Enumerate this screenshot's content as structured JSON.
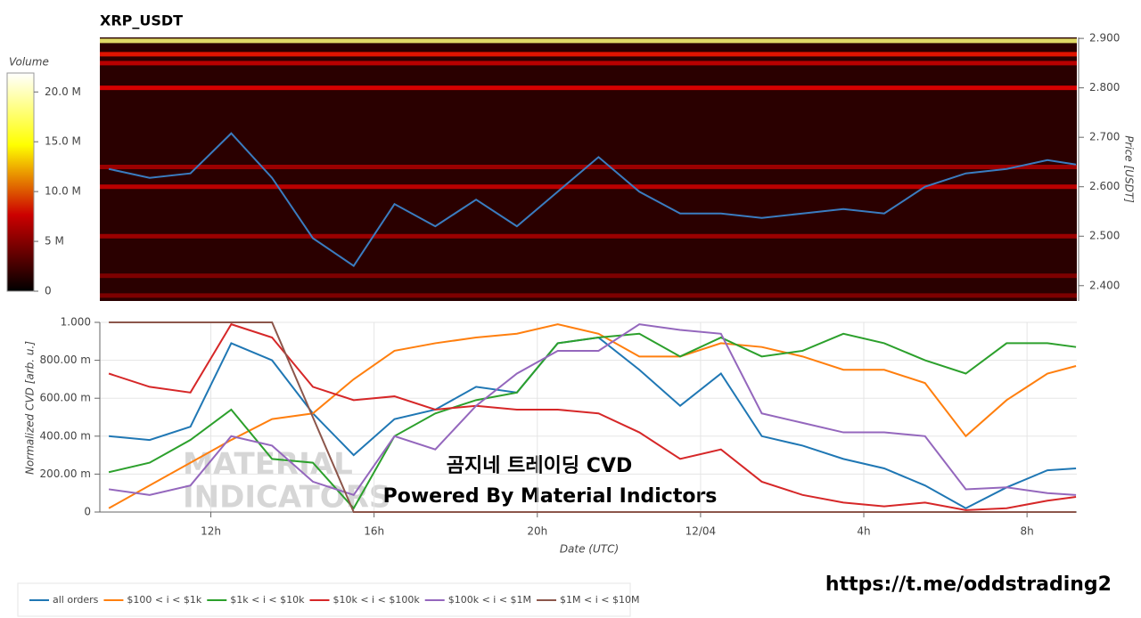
{
  "chart_data": [
    {
      "type": "heatmap",
      "title": "XRP_USDT",
      "colorbar_label": "Volume",
      "clim": [
        0,
        21.9
      ],
      "cticks": [
        0,
        {
          "value": 5,
          "label": "5 M"
        },
        {
          "value": 10,
          "label": "10.0 M"
        },
        {
          "value": 15,
          "label": "15.0 M"
        },
        {
          "value": 20,
          "label": "20.0 M"
        }
      ],
      "y2_label": "Price [USDT]",
      "y2lim": [
        2.369,
        2.902
      ],
      "y2ticks": [
        {
          "value": 2.4,
          "label": "2.400"
        },
        {
          "value": 2.5,
          "label": "2.500"
        },
        {
          "value": 2.6,
          "label": "2.600"
        },
        {
          "value": 2.7,
          "label": "2.700"
        },
        {
          "value": 2.8,
          "label": "2.800"
        },
        {
          "value": 2.9,
          "label": "2.900"
        }
      ],
      "xlim": [
        9.28,
        33.22
      ],
      "bands": {
        "price": [
          2.895,
          2.868,
          2.85,
          2.8,
          2.64,
          2.6,
          2.5,
          2.42,
          2.38
        ],
        "volume": [
          18,
          8,
          6,
          7,
          5,
          6,
          5,
          4,
          4
        ]
      },
      "x": [
        9.5,
        10.5,
        11.5,
        12.5,
        13.5,
        14.5,
        15.5,
        16.5,
        17.5,
        18.5,
        19.5,
        20.5,
        21.5,
        22.5,
        23.5,
        24.5,
        25.5,
        26.5,
        27.5,
        28.5,
        29.5,
        30.5,
        31.5,
        32.5,
        33.2
      ],
      "series": [
        {
          "color": "#3a7cc0",
          "axis": "y2",
          "values": [
            2.636,
            2.618,
            2.627,
            2.708,
            2.618,
            2.496,
            2.44,
            2.565,
            2.52,
            2.574,
            2.52,
            2.59,
            2.66,
            2.59,
            2.546,
            2.546,
            2.537,
            2.546,
            2.555,
            2.546,
            2.6,
            2.627,
            2.636,
            2.654,
            2.645
          ]
        }
      ]
    },
    {
      "type": "line",
      "x_label": "Date (UTC)",
      "y_label": "Normalized CVD [arb. u.]",
      "xlim": [
        9.28,
        33.22
      ],
      "ylim": [
        0,
        1
      ],
      "xticks": [
        {
          "value": 12,
          "label": "12h"
        },
        {
          "value": 16,
          "label": "16h"
        },
        {
          "value": 20,
          "label": "20h"
        },
        {
          "value": 24,
          "label": "12/04"
        },
        {
          "value": 28,
          "label": "4h"
        },
        {
          "value": 32,
          "label": "8h"
        }
      ],
      "yticks": [
        0,
        {
          "value": 0.2,
          "label": "200.00 m"
        },
        {
          "value": 0.4,
          "label": "400.00 m"
        },
        {
          "value": 0.6,
          "label": "600.00 m"
        },
        {
          "value": 0.8,
          "label": "800.00 m"
        },
        {
          "value": 1,
          "label": "1.000"
        }
      ],
      "grid": true,
      "x": [
        9.5,
        10.5,
        11.5,
        12.5,
        13.5,
        14.5,
        15.5,
        16.5,
        17.5,
        18.5,
        19.5,
        20.5,
        21.5,
        22.5,
        23.5,
        24.5,
        25.5,
        26.5,
        27.5,
        28.5,
        29.5,
        30.5,
        31.5,
        32.5,
        33.2
      ],
      "series": [
        {
          "name": "all orders",
          "color": "#1f77b4",
          "values": [
            0.4,
            0.38,
            0.45,
            0.89,
            0.8,
            0.52,
            0.3,
            0.49,
            0.54,
            0.66,
            0.63,
            0.89,
            0.92,
            0.75,
            0.56,
            0.73,
            0.4,
            0.35,
            0.28,
            0.23,
            0.14,
            0.02,
            0.13,
            0.22,
            0.23
          ]
        },
        {
          "name": "$100 < i < $1k",
          "color": "#ff7f0e",
          "values": [
            0.02,
            0.14,
            0.26,
            0.38,
            0.49,
            0.52,
            0.7,
            0.85,
            0.89,
            0.92,
            0.94,
            0.99,
            0.94,
            0.82,
            0.82,
            0.89,
            0.87,
            0.82,
            0.75,
            0.75,
            0.68,
            0.4,
            0.59,
            0.73,
            0.77
          ]
        },
        {
          "name": "$1k < i < $10k",
          "color": "#2ca02c",
          "values": [
            0.21,
            0.26,
            0.38,
            0.54,
            0.28,
            0.26,
            0.02,
            0.4,
            0.52,
            0.59,
            0.63,
            0.89,
            0.92,
            0.94,
            0.82,
            0.92,
            0.82,
            0.85,
            0.94,
            0.89,
            0.8,
            0.73,
            0.89,
            0.89,
            0.87
          ]
        },
        {
          "name": "$10k < i < $100k",
          "color": "#d62728",
          "values": [
            0.73,
            0.66,
            0.63,
            0.99,
            0.92,
            0.66,
            0.59,
            0.61,
            0.54,
            0.56,
            0.54,
            0.54,
            0.52,
            0.42,
            0.28,
            0.33,
            0.16,
            0.09,
            0.05,
            0.03,
            0.05,
            0.01,
            0.02,
            0.06,
            0.08
          ]
        },
        {
          "name": "$100k < i < $1M",
          "color": "#9467bd",
          "values": [
            0.12,
            0.09,
            0.14,
            0.4,
            0.35,
            0.16,
            0.09,
            0.4,
            0.33,
            0.56,
            0.73,
            0.85,
            0.85,
            0.99,
            0.96,
            0.94,
            0.52,
            0.47,
            0.42,
            0.42,
            0.4,
            0.12,
            0.13,
            0.1,
            0.09
          ]
        },
        {
          "name": "$1M < i < $10M",
          "color": "#8c564b",
          "values": [
            1,
            1,
            1,
            1,
            1,
            0.5,
            0,
            0,
            0,
            0,
            0,
            0,
            0,
            0,
            0,
            0,
            0,
            0,
            0,
            0,
            0,
            0,
            0,
            0,
            0
          ]
        }
      ],
      "annotations": [
        "곰지네 트레이딩 CVD",
        "Powered By Material Indictors",
        "MATERIAL",
        "INDICATORS",
        "https://t.me/oddstrading2"
      ]
    }
  ]
}
